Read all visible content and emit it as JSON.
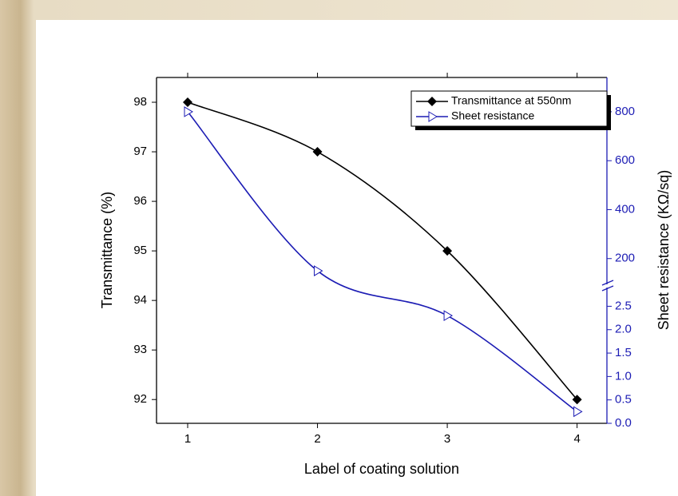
{
  "chart_data": {
    "type": "line",
    "x_label": "Label of coating solution",
    "y_label": "Transmittance (%)",
    "y2_label": "Sheet resistance (KΩ/sq)",
    "x": [
      1,
      2,
      3,
      4
    ],
    "xlim": [
      0.76,
      4.23
    ],
    "xticks": [
      1,
      2,
      3,
      4
    ],
    "ylim": [
      91.52,
      98.5
    ],
    "yticks": [
      92,
      93,
      94,
      95,
      96,
      97,
      98
    ],
    "y2_break": true,
    "y2_segments": [
      {
        "y2lim": [
          0,
          2.9
        ],
        "y2ticks": [
          {
            "value": 0,
            "label": "0.0"
          },
          0.5,
          {
            "value": 1,
            "label": "1.0"
          },
          1.5,
          {
            "value": 2,
            "label": "2.0"
          },
          2.5
        ]
      },
      {
        "y2lim": [
          98,
          940
        ],
        "y2ticks": [
          200,
          400,
          600,
          800
        ]
      }
    ],
    "series": [
      {
        "name": "Transmittance at 550nm",
        "color": "#000000",
        "marker": "diamond",
        "values": [
          98,
          97,
          95,
          92
        ]
      },
      {
        "name": "Sheet resistance",
        "color": "#1c1cb4",
        "marker": "triangle-right-open",
        "axis": "y2",
        "values": [
          800,
          150,
          2.3,
          0.25
        ]
      }
    ],
    "legend": "upper right"
  }
}
